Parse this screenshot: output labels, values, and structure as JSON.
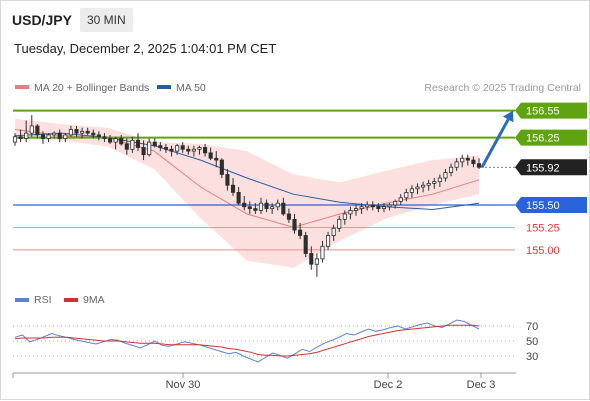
{
  "header": {
    "symbol": "USD/JPY",
    "timeframe": "30 MIN",
    "datetime": "Tuesday, December 2, 2025 1:04:01 PM CET"
  },
  "legend": {
    "ma20_label": "MA 20 + Bollinger Bands",
    "ma50_label": "MA 50",
    "credit": "Research © 2025 Trading Central",
    "rsi_label": "RSI",
    "rsi_ma_label": "9MA"
  },
  "colors": {
    "candle": "#2e2e2e",
    "ma20": "#f07b7b",
    "bands_fill": "#fcdada",
    "ma50": "#2a5d9f",
    "resistance": "#5fa311",
    "support": "#2962d9",
    "target_line": "#f08a8a",
    "target_text": "#e53935",
    "price_label_bg": "#222222",
    "arrow": "#2c6ab1",
    "rsi": "#5a83d8",
    "rsi_ma": "#d32f2f",
    "grid_dots": "#9a9a9a"
  },
  "chart_data": [
    {
      "type": "candlestick",
      "title": "USD/JPY 30 MIN",
      "x_labels": [
        "Nov 30",
        "Dec 2",
        "Dec 3"
      ],
      "y_range": [
        154.62,
        156.68
      ],
      "current_price": 155.92,
      "levels": [
        {
          "value": 156.55,
          "label": "156.55",
          "kind": "resistance"
        },
        {
          "value": 156.25,
          "label": "156.25",
          "kind": "resistance"
        },
        {
          "value": 155.92,
          "label": "155.92",
          "kind": "last"
        },
        {
          "value": 155.5,
          "label": "155.50",
          "kind": "support"
        },
        {
          "value": 155.25,
          "label": "155.25",
          "kind": "target"
        },
        {
          "value": 155.0,
          "label": "155.00",
          "kind": "target"
        }
      ],
      "arrow": {
        "from": 155.92,
        "to": 156.55
      },
      "series": [
        {
          "name": "MA 20",
          "values": [
            156.34,
            156.27,
            156.25,
            156.1,
            155.7,
            155.4,
            155.25,
            155.4,
            155.52,
            155.62,
            155.78
          ]
        },
        {
          "name": "MA 50",
          "values": [
            156.27,
            156.3,
            156.25,
            156.16,
            156.0,
            155.8,
            155.62,
            155.53,
            155.48,
            155.45,
            155.52
          ]
        },
        {
          "name": "Bollinger Upper",
          "values": [
            156.46,
            156.4,
            156.36,
            156.2,
            156.18,
            156.1,
            155.84,
            155.75,
            155.88,
            156.0,
            156.05
          ]
        },
        {
          "name": "Bollinger Lower",
          "values": [
            156.24,
            156.22,
            156.15,
            155.9,
            155.35,
            154.88,
            154.8,
            155.1,
            155.35,
            155.5,
            155.62
          ]
        }
      ],
      "ohlc": [
        [
          156.2,
          156.3,
          156.16,
          156.26
        ],
        [
          156.26,
          156.34,
          156.2,
          156.24
        ],
        [
          156.24,
          156.44,
          156.2,
          156.3
        ],
        [
          156.3,
          156.5,
          156.26,
          156.38
        ],
        [
          156.38,
          156.4,
          156.24,
          156.28
        ],
        [
          156.28,
          156.32,
          156.18,
          156.24
        ],
        [
          156.24,
          156.3,
          156.2,
          156.28
        ],
        [
          156.28,
          156.32,
          156.24,
          156.3
        ],
        [
          156.3,
          156.34,
          156.2,
          156.24
        ],
        [
          156.24,
          156.3,
          156.2,
          156.28
        ],
        [
          156.28,
          156.38,
          156.26,
          156.34
        ],
        [
          156.34,
          156.38,
          156.26,
          156.3
        ],
        [
          156.3,
          156.36,
          156.24,
          156.32
        ],
        [
          156.32,
          156.36,
          156.28,
          156.3
        ],
        [
          156.3,
          156.34,
          156.24,
          156.28
        ],
        [
          156.28,
          156.32,
          156.22,
          156.26
        ],
        [
          156.26,
          156.3,
          156.2,
          156.24
        ],
        [
          156.24,
          156.28,
          156.18,
          156.2
        ],
        [
          156.2,
          156.26,
          156.12,
          156.24
        ],
        [
          156.24,
          156.28,
          156.16,
          156.18
        ],
        [
          156.18,
          156.24,
          156.06,
          156.12
        ],
        [
          156.12,
          156.26,
          156.08,
          156.22
        ],
        [
          156.22,
          156.3,
          156.1,
          156.14
        ],
        [
          156.14,
          156.22,
          156.0,
          156.06
        ],
        [
          156.06,
          156.24,
          156.04,
          156.2
        ],
        [
          156.2,
          156.24,
          156.14,
          156.16
        ],
        [
          156.16,
          156.2,
          156.1,
          156.14
        ],
        [
          156.14,
          156.18,
          156.08,
          156.12
        ],
        [
          156.12,
          156.16,
          156.04,
          156.1
        ],
        [
          156.1,
          156.18,
          156.06,
          156.16
        ],
        [
          156.16,
          156.2,
          156.08,
          156.12
        ],
        [
          156.12,
          156.16,
          156.06,
          156.1
        ],
        [
          156.1,
          156.16,
          156.04,
          156.12
        ],
        [
          156.12,
          156.16,
          156.06,
          156.14
        ],
        [
          156.14,
          156.18,
          156.04,
          156.08
        ],
        [
          156.08,
          156.14,
          156.0,
          156.02
        ],
        [
          156.02,
          156.1,
          155.92,
          156.0
        ],
        [
          156.0,
          156.02,
          155.8,
          155.84
        ],
        [
          155.84,
          155.9,
          155.66,
          155.72
        ],
        [
          155.72,
          155.8,
          155.6,
          155.64
        ],
        [
          155.64,
          155.7,
          155.5,
          155.52
        ],
        [
          155.52,
          155.6,
          155.44,
          155.48
        ],
        [
          155.48,
          155.54,
          155.4,
          155.46
        ],
        [
          155.46,
          155.52,
          155.4,
          155.44
        ],
        [
          155.44,
          155.58,
          155.4,
          155.52
        ],
        [
          155.52,
          155.56,
          155.42,
          155.46
        ],
        [
          155.46,
          155.52,
          155.4,
          155.48
        ],
        [
          155.48,
          155.56,
          155.44,
          155.52
        ],
        [
          155.52,
          155.58,
          155.38,
          155.4
        ],
        [
          155.4,
          155.46,
          155.3,
          155.34
        ],
        [
          155.34,
          155.4,
          155.18,
          155.22
        ],
        [
          155.22,
          155.3,
          155.12,
          155.16
        ],
        [
          155.16,
          155.2,
          154.92,
          154.96
        ],
        [
          154.96,
          155.04,
          154.78,
          154.84
        ],
        [
          154.84,
          154.96,
          154.7,
          154.9
        ],
        [
          154.9,
          155.1,
          154.86,
          155.04
        ],
        [
          155.04,
          155.2,
          155.0,
          155.16
        ],
        [
          155.16,
          155.28,
          155.1,
          155.24
        ],
        [
          155.24,
          155.38,
          155.2,
          155.34
        ],
        [
          155.34,
          155.44,
          155.28,
          155.4
        ],
        [
          155.4,
          155.48,
          155.34,
          155.44
        ],
        [
          155.44,
          155.5,
          155.38,
          155.46
        ],
        [
          155.46,
          155.52,
          155.4,
          155.48
        ],
        [
          155.48,
          155.54,
          155.44,
          155.5
        ],
        [
          155.5,
          155.54,
          155.44,
          155.48
        ],
        [
          155.48,
          155.52,
          155.42,
          155.46
        ],
        [
          155.46,
          155.52,
          155.42,
          155.48
        ],
        [
          155.48,
          155.52,
          155.44,
          155.5
        ],
        [
          155.5,
          155.56,
          155.46,
          155.54
        ],
        [
          155.54,
          155.62,
          155.5,
          155.58
        ],
        [
          155.58,
          155.68,
          155.54,
          155.64
        ],
        [
          155.64,
          155.72,
          155.58,
          155.68
        ],
        [
          155.68,
          155.74,
          155.62,
          155.7
        ],
        [
          155.7,
          155.76,
          155.64,
          155.72
        ],
        [
          155.72,
          155.78,
          155.66,
          155.74
        ],
        [
          155.74,
          155.8,
          155.68,
          155.76
        ],
        [
          155.76,
          155.84,
          155.7,
          155.8
        ],
        [
          155.8,
          155.9,
          155.76,
          155.86
        ],
        [
          155.86,
          155.96,
          155.82,
          155.92
        ],
        [
          155.92,
          156.02,
          155.88,
          155.98
        ],
        [
          155.98,
          156.06,
          155.92,
          156.02
        ],
        [
          156.02,
          156.06,
          155.94,
          156.0
        ],
        [
          156.0,
          156.04,
          155.92,
          155.96
        ],
        [
          155.96,
          156.02,
          155.9,
          155.92
        ]
      ]
    },
    {
      "type": "line",
      "title": "RSI",
      "y_ticks": [
        70,
        50,
        30
      ],
      "y_range": [
        10,
        90
      ],
      "series": [
        {
          "name": "RSI",
          "values": [
            55,
            58,
            49,
            52,
            56,
            60,
            57,
            55,
            52,
            50,
            48,
            46,
            49,
            52,
            51,
            47,
            44,
            41,
            45,
            50,
            44,
            43,
            46,
            49,
            47,
            45,
            42,
            39,
            36,
            33,
            35,
            30,
            26,
            22,
            28,
            34,
            31,
            27,
            33,
            39,
            36,
            42,
            47,
            51,
            55,
            60,
            58,
            62,
            66,
            63,
            65,
            68,
            70,
            66,
            69,
            72,
            74,
            70,
            68,
            73,
            78,
            76,
            71,
            66
          ]
        },
        {
          "name": "9MA",
          "values": [
            53,
            54,
            54,
            54,
            54,
            55,
            55,
            55,
            54,
            53,
            52,
            51,
            50,
            50,
            50,
            49,
            48,
            47,
            47,
            47,
            46,
            45,
            45,
            45,
            45,
            45,
            44,
            43,
            42,
            40,
            39,
            37,
            35,
            32,
            31,
            31,
            30,
            30,
            31,
            32,
            33,
            35,
            38,
            41,
            44,
            47,
            50,
            53,
            56,
            58,
            60,
            62,
            64,
            65,
            66,
            67,
            68,
            69,
            70,
            71,
            71,
            71,
            71,
            70
          ]
        }
      ]
    }
  ]
}
